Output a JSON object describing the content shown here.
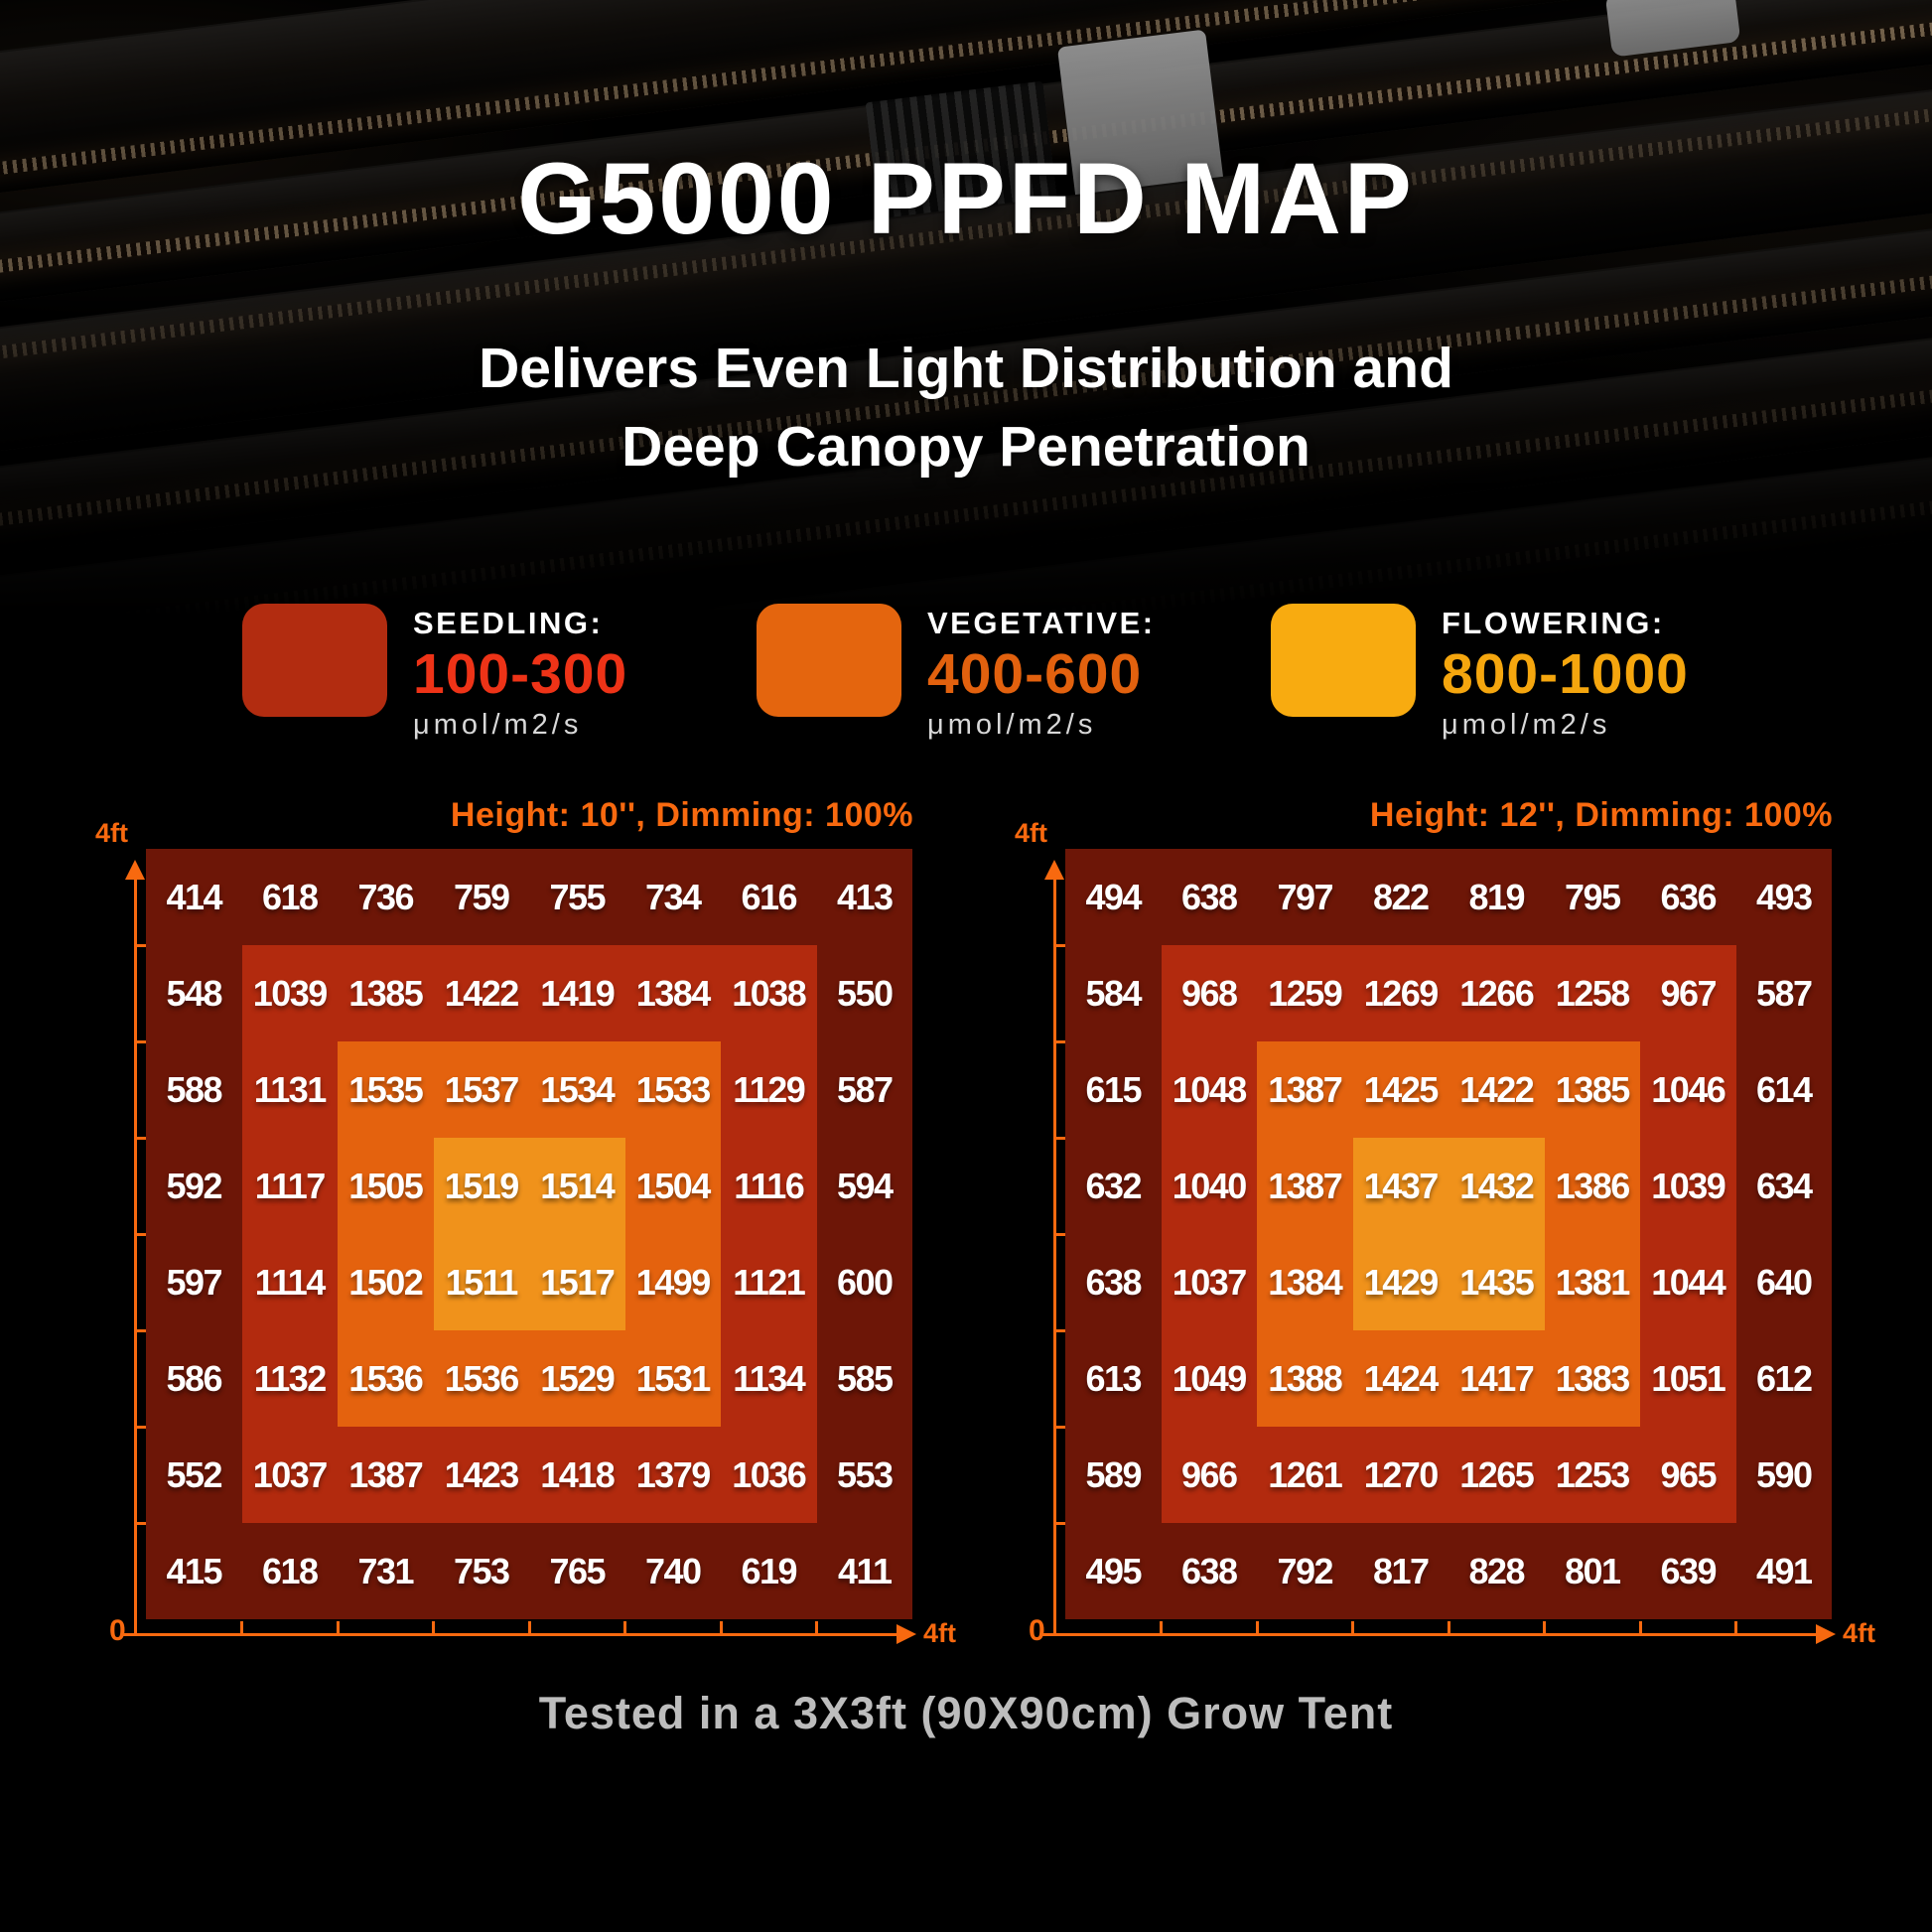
{
  "page": {
    "title": "G5000 PPFD MAP",
    "subtitle_line1": "Delivers Even Light Distribution and",
    "subtitle_line2": "Deep Canopy Penetration",
    "footer_note": "Tested in a 3X3ft (90X90cm) Grow Tent"
  },
  "colors": {
    "background": "#000000",
    "accent_orange": "#f8690f",
    "heat_scale": [
      "#6d1607",
      "#b22a0e",
      "#e4620e",
      "#f0921b"
    ],
    "value_text": "#ffffff",
    "unit_text": "#d8d8d8",
    "footer_text": "#bdbdbd"
  },
  "legend": {
    "items": [
      {
        "label": "SEEDLING:",
        "range": "100-300",
        "unit": "μmol/m2/s",
        "swatch_color": "#b22c10",
        "range_color": "#ee3317"
      },
      {
        "label": "VEGETATIVE:",
        "range": "400-600",
        "unit": "μmol/m2/s",
        "swatch_color": "#e4650e",
        "range_color": "#e2610e"
      },
      {
        "label": "FLOWERING:",
        "range": "800-1000",
        "unit": "μmol/m2/s",
        "swatch_color": "#f8ab10",
        "range_color": "#f5a60e"
      }
    ]
  },
  "chart_data": [
    {
      "type": "heatmap",
      "title": "Height: 10'', Dimming: 100%",
      "unit": "μmol/m2/s",
      "grid_size": "8x8",
      "x_axis": {
        "origin_label": "0",
        "end_label": "4ft"
      },
      "y_axis": {
        "end_label": "4ft"
      },
      "values": [
        [
          414,
          618,
          736,
          759,
          755,
          734,
          616,
          413
        ],
        [
          548,
          1039,
          1385,
          1422,
          1419,
          1384,
          1038,
          550
        ],
        [
          588,
          1131,
          1535,
          1537,
          1534,
          1533,
          1129,
          587
        ],
        [
          592,
          1117,
          1505,
          1519,
          1514,
          1504,
          1116,
          594
        ],
        [
          597,
          1114,
          1502,
          1511,
          1517,
          1499,
          1121,
          600
        ],
        [
          586,
          1132,
          1536,
          1536,
          1529,
          1531,
          1134,
          585
        ],
        [
          552,
          1037,
          1387,
          1423,
          1418,
          1379,
          1036,
          553
        ],
        [
          415,
          618,
          731,
          753,
          765,
          740,
          619,
          411
        ]
      ]
    },
    {
      "type": "heatmap",
      "title": "Height: 12'', Dimming: 100%",
      "unit": "μmol/m2/s",
      "grid_size": "8x8",
      "x_axis": {
        "origin_label": "0",
        "end_label": "4ft"
      },
      "y_axis": {
        "end_label": "4ft"
      },
      "values": [
        [
          494,
          638,
          797,
          822,
          819,
          795,
          636,
          493
        ],
        [
          584,
          968,
          1259,
          1269,
          1266,
          1258,
          967,
          587
        ],
        [
          615,
          1048,
          1387,
          1425,
          1422,
          1385,
          1046,
          614
        ],
        [
          632,
          1040,
          1387,
          1437,
          1432,
          1386,
          1039,
          634
        ],
        [
          638,
          1037,
          1384,
          1429,
          1435,
          1381,
          1044,
          640
        ],
        [
          613,
          1049,
          1388,
          1424,
          1417,
          1383,
          1051,
          612
        ],
        [
          589,
          966,
          1261,
          1270,
          1265,
          1253,
          965,
          590
        ],
        [
          495,
          638,
          792,
          817,
          828,
          801,
          639,
          491
        ]
      ]
    }
  ]
}
